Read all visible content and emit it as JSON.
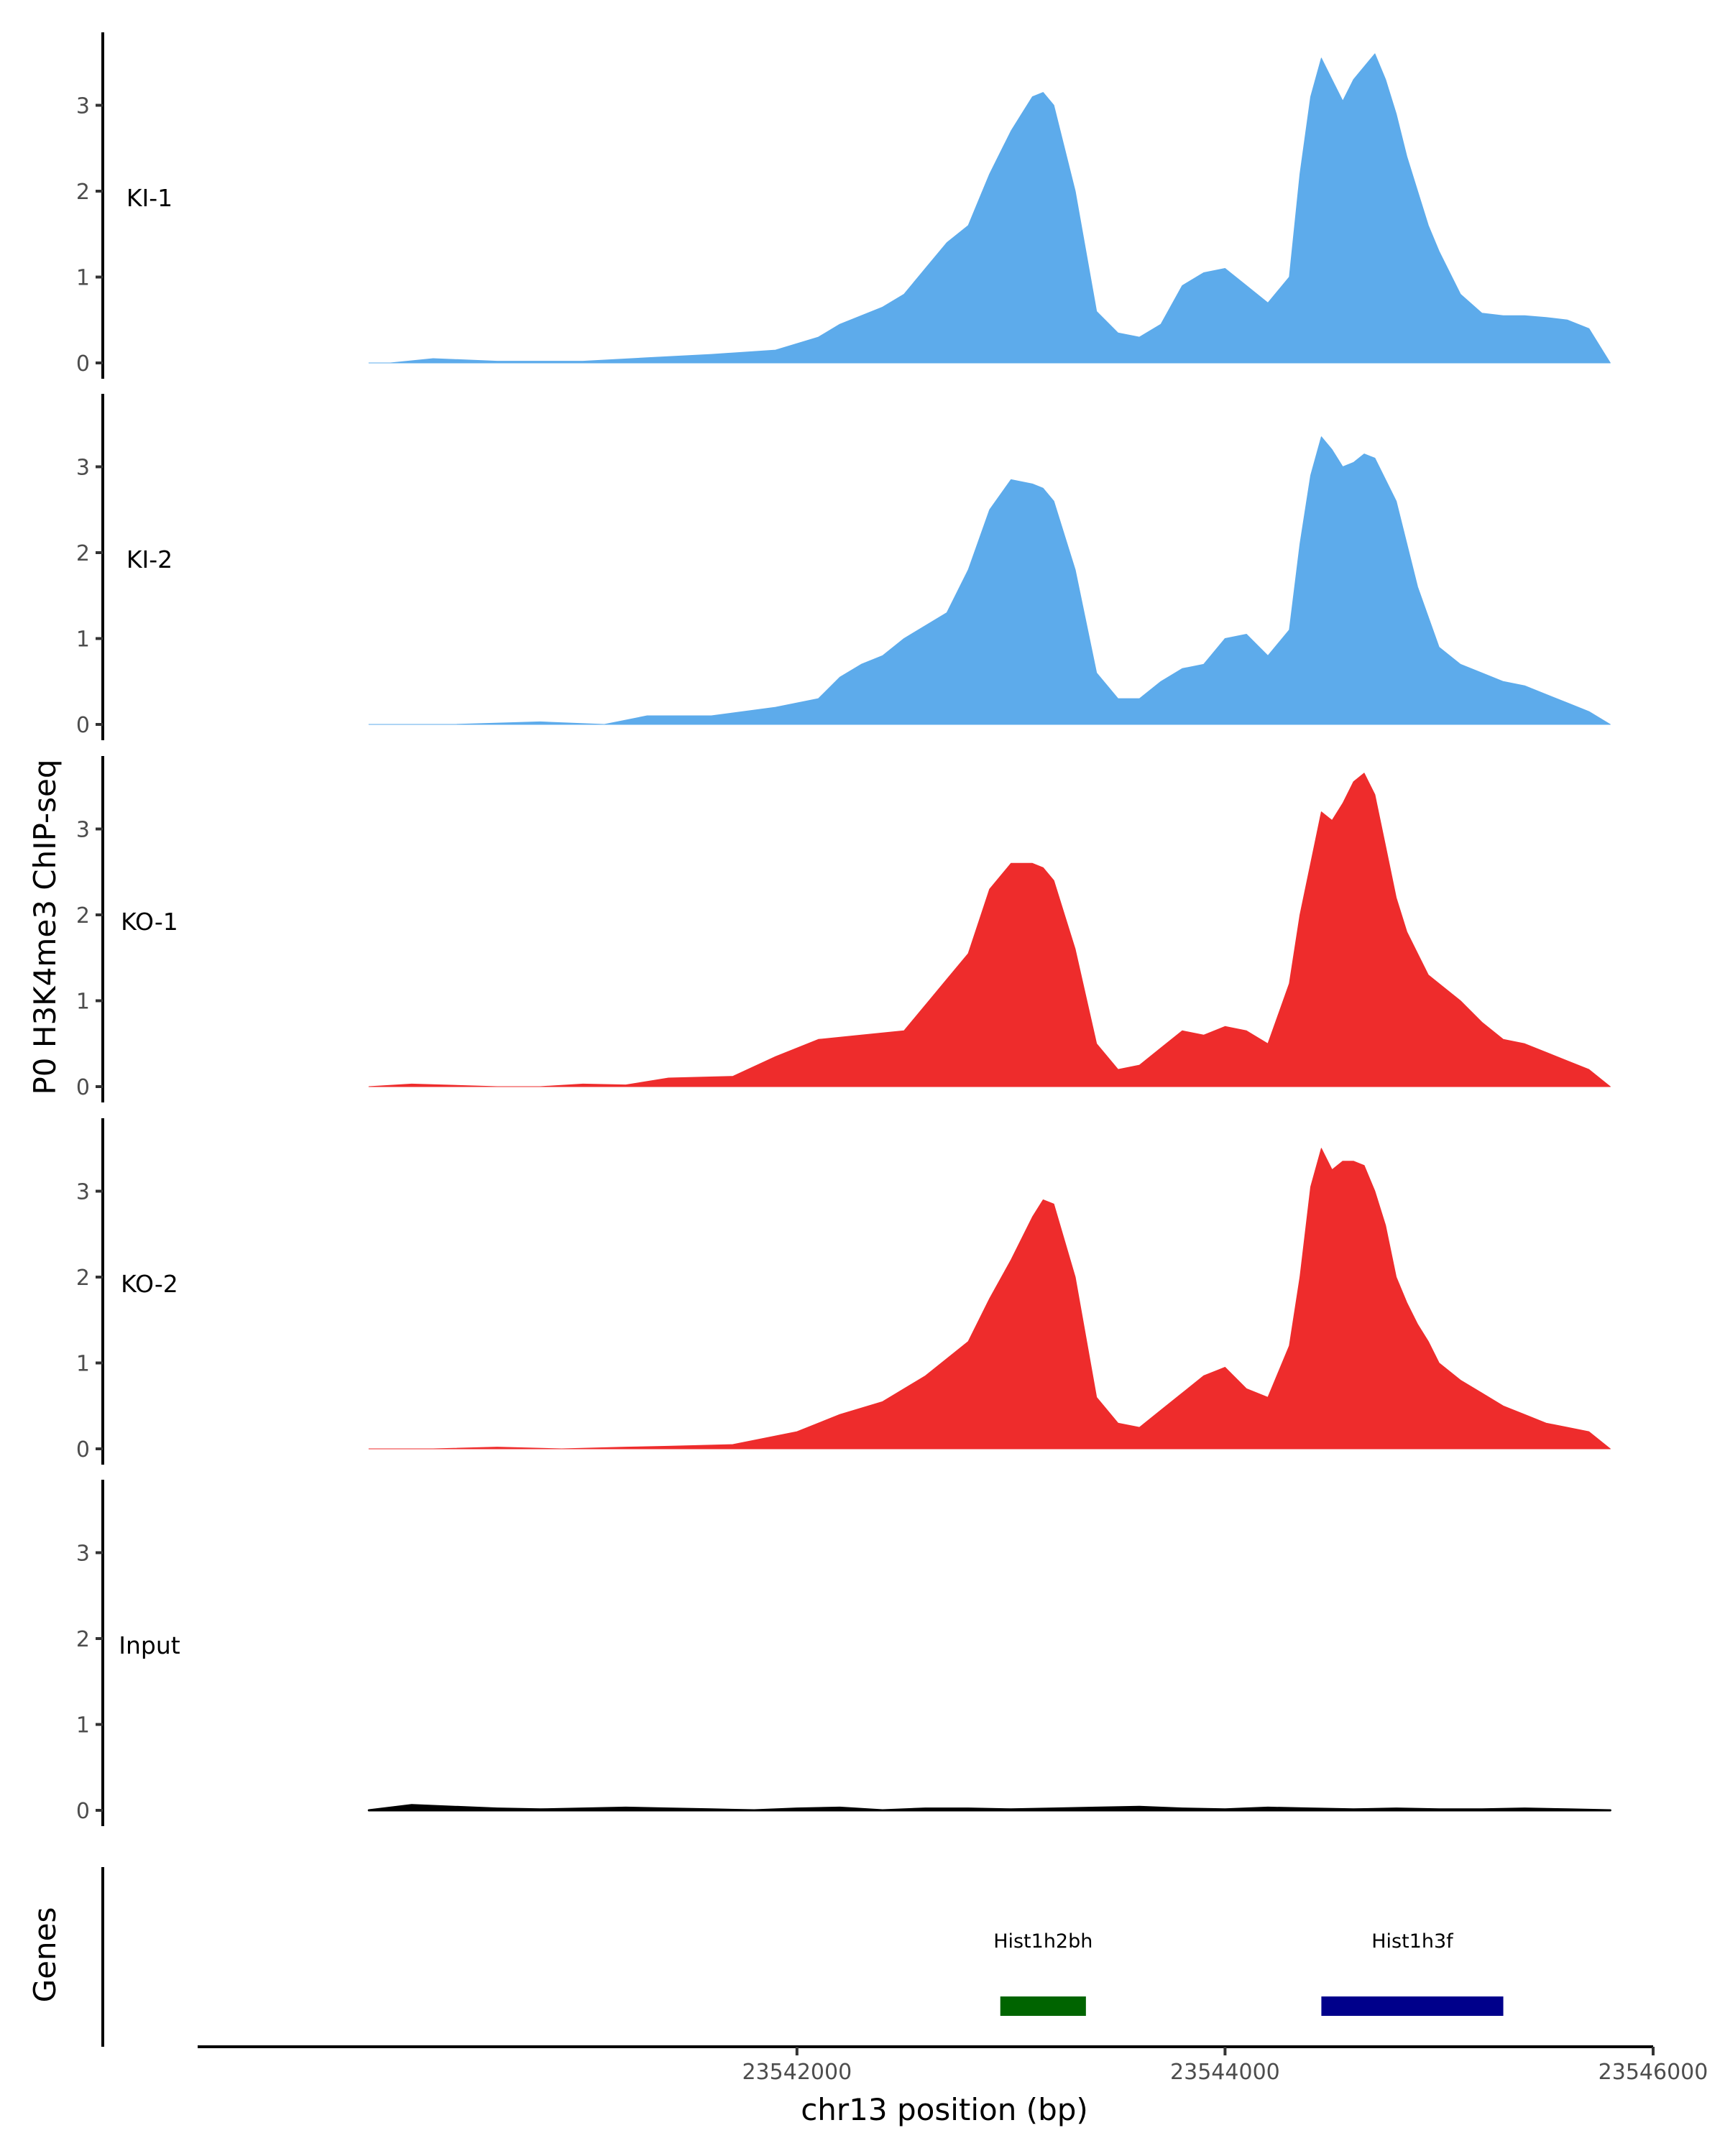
{
  "chart_data": {
    "type": "area",
    "region": "chr13",
    "ylabel": "P0 H3K4me3 ChIP-seq",
    "xlabel": "chr13 position (bp)",
    "xlim": [
      23539200,
      23546000
    ],
    "ylim": [
      0,
      3.85
    ],
    "x_ticks": [
      23542000,
      23544000,
      23546000
    ],
    "x_tick_labels": [
      "23542000",
      "23544000",
      "23546000"
    ],
    "y_ticks": [
      0,
      1,
      2,
      3
    ],
    "y_tick_labels": [
      "0",
      "1",
      "2",
      "3"
    ],
    "gene_track_label": "Genes",
    "series": [
      {
        "name": "KI-1",
        "color": "#5DABEB",
        "x": [
          23540000,
          23540100,
          23540300,
          23540600,
          23541000,
          23541300,
          23541600,
          23541900,
          23542100,
          23542200,
          23542400,
          23542500,
          23542600,
          23542700,
          23542800,
          23542850,
          23542900,
          23543000,
          23543050,
          23543100,
          23543150,
          23543200,
          23543300,
          23543400,
          23543500,
          23543600,
          23543700,
          23543800,
          23543900,
          23544000,
          23544100,
          23544200,
          23544300,
          23544350,
          23544400,
          23544450,
          23544500,
          23544550,
          23544600,
          23544650,
          23544700,
          23544750,
          23544800,
          23544850,
          23544900,
          23544950,
          23545000,
          23545100,
          23545200,
          23545300,
          23545400,
          23545500,
          23545600,
          23545700,
          23545800
        ],
        "values": [
          0.0,
          0.0,
          0.05,
          0.02,
          0.02,
          0.06,
          0.1,
          0.15,
          0.3,
          0.45,
          0.65,
          0.8,
          1.1,
          1.4,
          1.6,
          1.9,
          2.2,
          2.7,
          2.9,
          3.1,
          3.15,
          3.0,
          2.0,
          0.6,
          0.35,
          0.3,
          0.45,
          0.9,
          1.05,
          1.1,
          0.9,
          0.7,
          1.0,
          2.2,
          3.1,
          3.55,
          3.3,
          3.05,
          3.3,
          3.45,
          3.6,
          3.3,
          2.9,
          2.4,
          2.0,
          1.6,
          1.3,
          0.8,
          0.58,
          0.55,
          0.55,
          0.53,
          0.5,
          0.4,
          0.0
        ]
      },
      {
        "name": "KI-2",
        "color": "#5DABEB",
        "x": [
          23540000,
          23540400,
          23540800,
          23541100,
          23541300,
          23541600,
          23541900,
          23542100,
          23542200,
          23542300,
          23542400,
          23542500,
          23542700,
          23542800,
          23542900,
          23543000,
          23543100,
          23543150,
          23543200,
          23543300,
          23543400,
          23543500,
          23543600,
          23543700,
          23543800,
          23543900,
          23544000,
          23544100,
          23544200,
          23544300,
          23544350,
          23544400,
          23544450,
          23544500,
          23544550,
          23544600,
          23544650,
          23544700,
          23544800,
          23544900,
          23545000,
          23545100,
          23545200,
          23545300,
          23545400,
          23545500,
          23545600,
          23545700,
          23545800
        ],
        "values": [
          0.0,
          0.0,
          0.03,
          0.0,
          0.1,
          0.1,
          0.2,
          0.3,
          0.55,
          0.7,
          0.8,
          1.0,
          1.3,
          1.8,
          2.5,
          2.85,
          2.8,
          2.75,
          2.6,
          1.8,
          0.6,
          0.3,
          0.3,
          0.5,
          0.65,
          0.7,
          1.0,
          1.05,
          0.8,
          1.1,
          2.1,
          2.9,
          3.35,
          3.2,
          3.0,
          3.05,
          3.15,
          3.1,
          2.6,
          1.6,
          0.9,
          0.7,
          0.6,
          0.5,
          0.45,
          0.35,
          0.25,
          0.15,
          0.0
        ]
      },
      {
        "name": "KO-1",
        "color": "#EE2C2C",
        "x": [
          23540000,
          23540200,
          23540600,
          23540800,
          23541000,
          23541200,
          23541400,
          23541700,
          23541900,
          23542100,
          23542300,
          23542500,
          23542600,
          23542700,
          23542800,
          23542900,
          23543000,
          23543100,
          23543150,
          23543200,
          23543300,
          23543400,
          23543500,
          23543600,
          23543700,
          23543800,
          23543900,
          23544000,
          23544100,
          23544200,
          23544300,
          23544350,
          23544400,
          23544450,
          23544500,
          23544550,
          23544600,
          23544650,
          23544700,
          23544750,
          23544800,
          23544850,
          23544900,
          23544950,
          23545000,
          23545100,
          23545200,
          23545300,
          23545400,
          23545500,
          23545600,
          23545700,
          23545800
        ],
        "values": [
          0.0,
          0.03,
          0.0,
          0.0,
          0.03,
          0.02,
          0.1,
          0.12,
          0.35,
          0.55,
          0.6,
          0.65,
          0.95,
          1.25,
          1.55,
          2.3,
          2.6,
          2.6,
          2.55,
          2.4,
          1.6,
          0.5,
          0.2,
          0.25,
          0.45,
          0.65,
          0.6,
          0.7,
          0.65,
          0.5,
          1.2,
          2.0,
          2.6,
          3.2,
          3.1,
          3.3,
          3.55,
          3.65,
          3.4,
          2.8,
          2.2,
          1.8,
          1.55,
          1.3,
          1.2,
          1.0,
          0.75,
          0.55,
          0.5,
          0.4,
          0.3,
          0.2,
          0.0
        ]
      },
      {
        "name": "KO-2",
        "color": "#EE2C2C",
        "x": [
          23540000,
          23540300,
          23540600,
          23540900,
          23541200,
          23541400,
          23541700,
          23542000,
          23542200,
          23542400,
          23542600,
          23542800,
          23542900,
          23543000,
          23543100,
          23543150,
          23543200,
          23543300,
          23543400,
          23543500,
          23543600,
          23543700,
          23543800,
          23543900,
          23544000,
          23544100,
          23544200,
          23544300,
          23544350,
          23544400,
          23544450,
          23544500,
          23544550,
          23544600,
          23544650,
          23544700,
          23544750,
          23544800,
          23544850,
          23544900,
          23544950,
          23545000,
          23545100,
          23545200,
          23545300,
          23545400,
          23545500,
          23545600,
          23545700,
          23545800
        ],
        "values": [
          0.0,
          0.0,
          0.02,
          0.0,
          0.02,
          0.03,
          0.05,
          0.2,
          0.4,
          0.55,
          0.85,
          1.25,
          1.75,
          2.2,
          2.7,
          2.9,
          2.85,
          2.0,
          0.6,
          0.3,
          0.25,
          0.45,
          0.65,
          0.85,
          0.95,
          0.7,
          0.6,
          1.2,
          2.0,
          3.05,
          3.5,
          3.25,
          3.35,
          3.35,
          3.3,
          3.0,
          2.6,
          2.0,
          1.7,
          1.45,
          1.25,
          1.0,
          0.8,
          0.65,
          0.5,
          0.4,
          0.3,
          0.25,
          0.2,
          0.0
        ]
      },
      {
        "name": "Input",
        "color": "#000000",
        "x": [
          23540000,
          23540200,
          23540400,
          23540600,
          23540800,
          23541000,
          23541200,
          23541400,
          23541600,
          23541800,
          23542000,
          23542200,
          23542400,
          23542600,
          23542800,
          23543000,
          23543200,
          23543400,
          23543600,
          23543800,
          23544000,
          23544200,
          23544400,
          23544600,
          23544800,
          23545000,
          23545200,
          23545400,
          23545600,
          23545800
        ],
        "values": [
          0.0,
          0.06,
          0.04,
          0.02,
          0.01,
          0.02,
          0.03,
          0.02,
          0.01,
          0.0,
          0.02,
          0.03,
          0.0,
          0.02,
          0.02,
          0.01,
          0.02,
          0.03,
          0.04,
          0.02,
          0.01,
          0.03,
          0.02,
          0.01,
          0.02,
          0.01,
          0.01,
          0.02,
          0.01,
          0.0
        ]
      }
    ],
    "genes": [
      {
        "name": "Hist1h2bh",
        "start": 23542950,
        "end": 23543350,
        "color": "#006400"
      },
      {
        "name": "Hist1h3f",
        "start": 23544450,
        "end": 23545300,
        "color": "#00008B"
      }
    ]
  }
}
